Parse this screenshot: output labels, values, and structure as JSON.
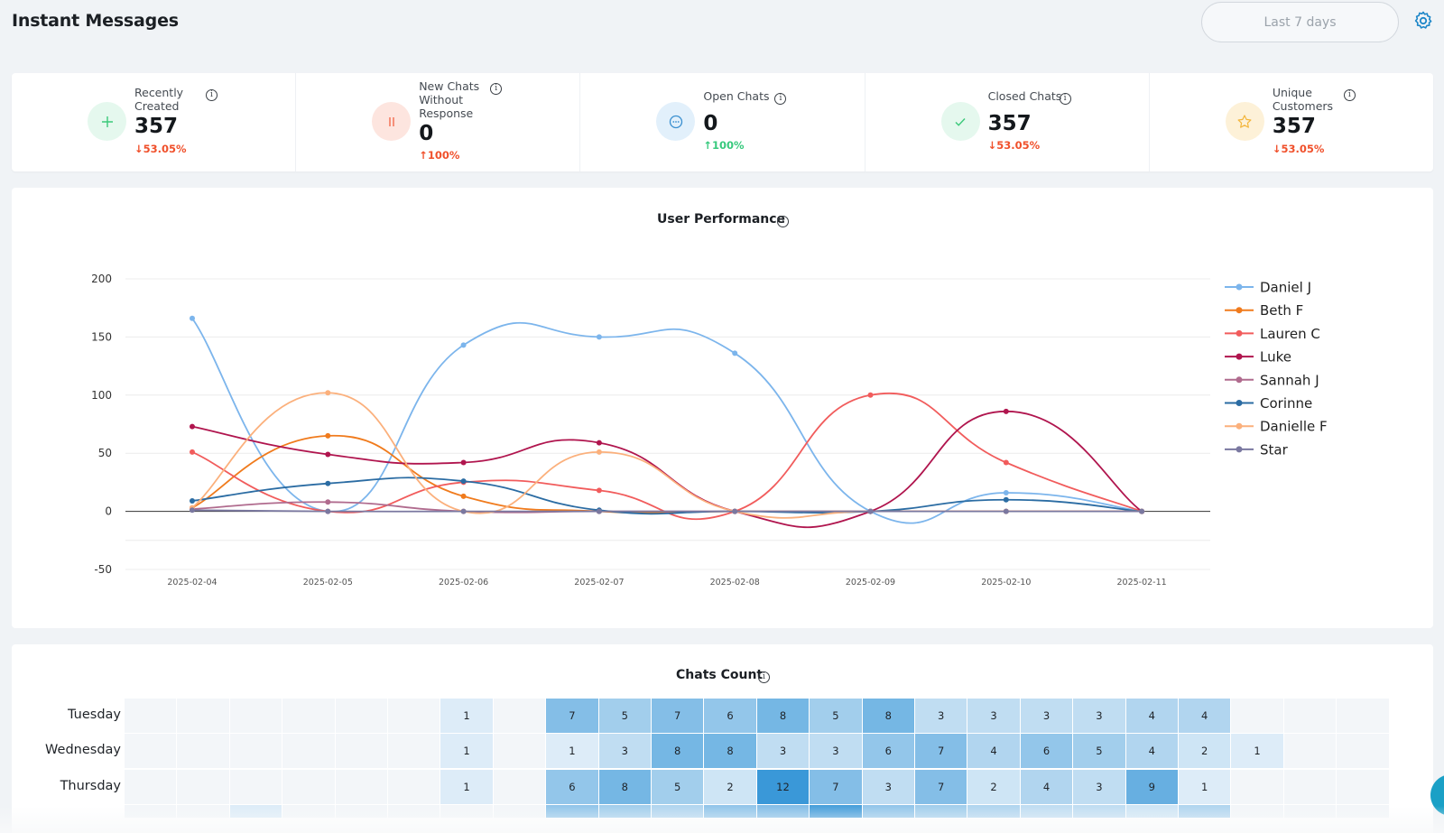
{
  "page": {
    "title": "Instant Messages"
  },
  "controls": {
    "range_label": "Last 7 days"
  },
  "stats": [
    {
      "label": "Recently Created",
      "value": "357",
      "change": "53.05%",
      "direction": "down",
      "icon": "plus-icon",
      "icon_color": "#3bc97a",
      "icon_bg": "#e5f8ee"
    },
    {
      "label": "New Chats Without Response",
      "value": "0",
      "change": "100%",
      "direction": "up",
      "icon": "pause-icon",
      "icon_color": "#f26b4e",
      "icon_bg": "#fde5df"
    },
    {
      "label": "Open Chats",
      "value": "0",
      "change": "100%",
      "direction": "up",
      "icon": "chat-bubble-icon",
      "icon_color": "#3a8fd0",
      "icon_bg": "#e2f0fb"
    },
    {
      "label": "Closed Chats",
      "value": "357",
      "change": "53.05%",
      "direction": "down",
      "icon": "check-icon",
      "icon_color": "#3bc97a",
      "icon_bg": "#e5f8ee"
    },
    {
      "label": "Unique Customers",
      "value": "357",
      "change": "53.05%",
      "direction": "down",
      "icon": "star-icon",
      "icon_color": "#f3b53a",
      "icon_bg": "#fdf1d8"
    }
  ],
  "performance": {
    "title": "User Performance",
    "chart_data": {
      "type": "line",
      "x": [
        "2025-02-04",
        "2025-02-05",
        "2025-02-06",
        "2025-02-07",
        "2025-02-08",
        "2025-02-09",
        "2025-02-10",
        "2025-02-11"
      ],
      "ylim": [
        -50,
        200
      ],
      "yticks": [
        -50,
        0,
        50,
        100,
        150,
        200
      ],
      "legend": "right",
      "series": [
        {
          "name": "Daniel J",
          "color": "#7cb5ec",
          "values": [
            166,
            0,
            143,
            150,
            136,
            0,
            16,
            0
          ]
        },
        {
          "name": "Beth F",
          "color": "#f07b1d",
          "values": [
            3,
            65,
            13,
            0,
            0,
            0,
            0,
            0
          ]
        },
        {
          "name": "Lauren C",
          "color": "#f15c5c",
          "values": [
            51,
            0,
            25,
            18,
            0,
            100,
            42,
            0
          ]
        },
        {
          "name": "Luke",
          "color": "#b0154e",
          "values": [
            73,
            49,
            42,
            59,
            0,
            0,
            86,
            0
          ]
        },
        {
          "name": "Sannah J",
          "color": "#b06b8e",
          "values": [
            2,
            8,
            0,
            0,
            0,
            0,
            0,
            0
          ]
        },
        {
          "name": "Corinne",
          "color": "#2b6ca3",
          "values": [
            9,
            24,
            26,
            1,
            0,
            0,
            10,
            0
          ]
        },
        {
          "name": "Danielle F",
          "color": "#fbb07c",
          "values": [
            3,
            102,
            0,
            51,
            0,
            0,
            0,
            0
          ]
        },
        {
          "name": "Star",
          "color": "#7a78a0",
          "values": [
            1,
            0,
            0,
            0,
            0,
            0,
            0,
            0
          ]
        }
      ]
    }
  },
  "heatmap": {
    "title": "Chats Count",
    "chart_data": {
      "type": "heatmap",
      "rows": [
        "Tuesday",
        "Wednesday",
        "Thursday"
      ],
      "columns": 24,
      "values": [
        [
          null,
          null,
          null,
          null,
          null,
          null,
          1,
          null,
          7,
          5,
          7,
          6,
          8,
          5,
          8,
          3,
          3,
          3,
          3,
          4,
          4,
          null,
          null,
          null
        ],
        [
          null,
          null,
          null,
          null,
          null,
          null,
          1,
          null,
          1,
          3,
          8,
          8,
          3,
          3,
          6,
          7,
          4,
          6,
          5,
          4,
          2,
          1,
          null,
          null
        ],
        [
          null,
          null,
          null,
          null,
          null,
          null,
          1,
          null,
          6,
          8,
          5,
          2,
          12,
          7,
          3,
          7,
          2,
          4,
          3,
          9,
          1,
          null,
          null,
          null
        ]
      ]
    }
  }
}
